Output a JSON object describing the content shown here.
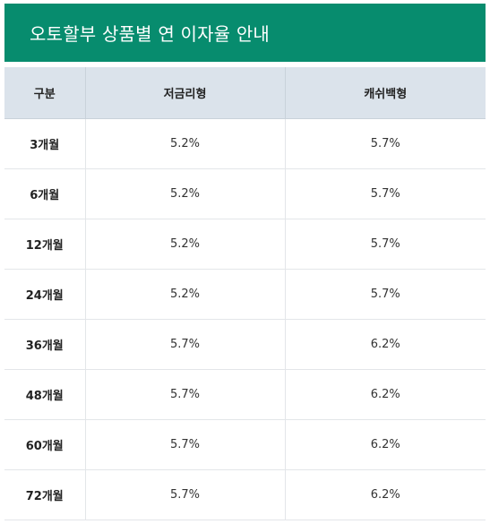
{
  "title": "오토할부 상품별 연 이자율 안내",
  "table": {
    "headers": [
      "구분",
      "저금리형",
      "캐쉬백형"
    ],
    "rows": [
      [
        "3개월",
        "5.2%",
        "5.7%"
      ],
      [
        "6개월",
        "5.2%",
        "5.7%"
      ],
      [
        "12개월",
        "5.2%",
        "5.7%"
      ],
      [
        "24개월",
        "5.2%",
        "5.7%"
      ],
      [
        "36개월",
        "5.7%",
        "6.2%"
      ],
      [
        "48개월",
        "5.7%",
        "6.2%"
      ],
      [
        "60개월",
        "5.7%",
        "6.2%"
      ],
      [
        "72개월",
        "5.7%",
        "6.2%"
      ]
    ]
  },
  "colors": {
    "title_background": "#078c6e",
    "header_background": "#dbe3eb",
    "border": "#e3e6e9"
  }
}
